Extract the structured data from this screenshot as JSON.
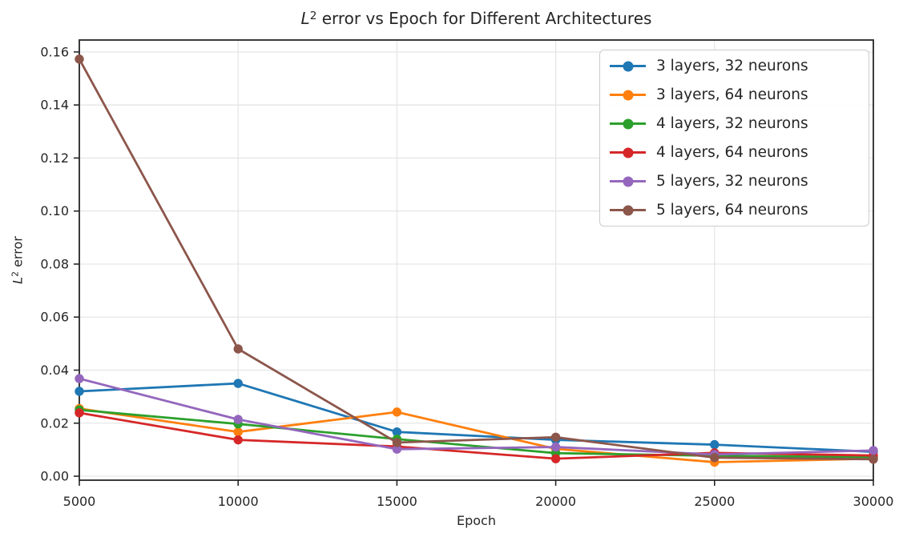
{
  "figure": {
    "title": {
      "math_italic": "L",
      "math_sup": "2",
      "text": " error vs Epoch for Different Architectures"
    },
    "xlabel": "Epoch",
    "ylabel": {
      "math_italic": "L",
      "math_sup": "2",
      "text": " error"
    },
    "background_color": "#ffffff",
    "text_color": "#262626",
    "grid_color": "#e6e6e6",
    "spine_color": "#262626",
    "legend_border_color": "#cccccc"
  },
  "chart_data": {
    "type": "line",
    "title": "L^2 error vs Epoch for Different Architectures",
    "xlabel": "Epoch",
    "ylabel": "L^2 error",
    "x": [
      5000,
      10000,
      15000,
      20000,
      25000,
      30000
    ],
    "series": [
      {
        "name": "3 layers, 32 neurons",
        "color": "#1f77b4",
        "values": [
          0.032,
          0.035,
          0.0167,
          0.0137,
          0.0119,
          0.0092
        ]
      },
      {
        "name": "3 layers, 64 neurons",
        "color": "#ff7f0e",
        "values": [
          0.0255,
          0.0167,
          0.0242,
          0.0103,
          0.0053,
          0.0066
        ]
      },
      {
        "name": "4 layers, 32 neurons",
        "color": "#2ca02c",
        "values": [
          0.025,
          0.0197,
          0.014,
          0.0087,
          0.0077,
          0.0072
        ]
      },
      {
        "name": "4 layers, 64 neurons",
        "color": "#d62728",
        "values": [
          0.0239,
          0.0137,
          0.0112,
          0.0066,
          0.0088,
          0.0078
        ]
      },
      {
        "name": "5 layers, 32 neurons",
        "color": "#9467bd",
        "values": [
          0.0368,
          0.0214,
          0.0102,
          0.011,
          0.0082,
          0.0097
        ]
      },
      {
        "name": "5 layers, 64 neurons",
        "color": "#8c564b",
        "values": [
          0.1573,
          0.048,
          0.0127,
          0.0147,
          0.007,
          0.0064
        ]
      }
    ],
    "xticks": [
      5000,
      10000,
      15000,
      20000,
      25000,
      30000
    ],
    "yticks": [
      0.0,
      0.02,
      0.04,
      0.06,
      0.08,
      0.1,
      0.12,
      0.14,
      0.16
    ],
    "xtick_labels": [
      "5000",
      "10000",
      "15000",
      "20000",
      "25000",
      "30000"
    ],
    "ytick_labels": [
      "0.00",
      "0.02",
      "0.04",
      "0.06",
      "0.08",
      "0.10",
      "0.12",
      "0.14",
      "0.16"
    ],
    "xlim": [
      5000,
      30000
    ],
    "ylim": [
      -0.0015,
      0.1645
    ],
    "grid": true,
    "legend_position": "upper right",
    "marker": "circle"
  }
}
